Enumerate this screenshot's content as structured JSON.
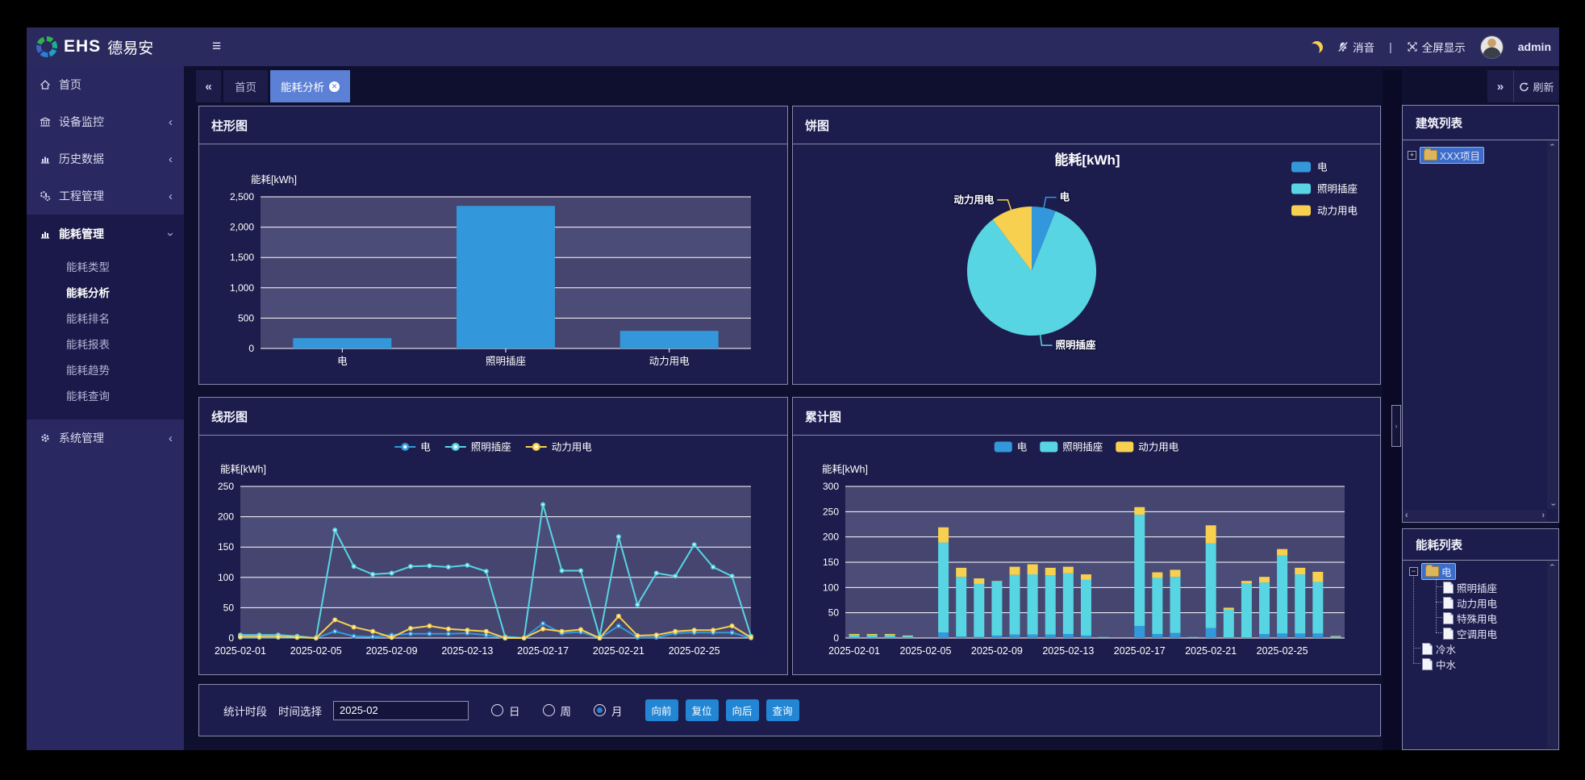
{
  "colors": {
    "accent_blue": "#3398db",
    "cyan": "#58d5e2",
    "yellow": "#f6d04e",
    "tab_active": "#5b80d5",
    "button_blue": "#2286d5",
    "plot_bg_a": "#45456f",
    "plot_bg_b": "#4c4c78"
  },
  "app": {
    "brand": {
      "en": "EHS",
      "cn": "德易安"
    },
    "topbar": {
      "mute": "消音",
      "divider": "|",
      "fullscreen": "全屏显示",
      "user": "admin"
    },
    "sidebar": {
      "items": [
        {
          "label": "首页"
        },
        {
          "label": "设备监控"
        },
        {
          "label": "历史数据"
        },
        {
          "label": "工程管理"
        },
        {
          "label": "能耗管理",
          "children": [
            "能耗类型",
            "能耗分析",
            "能耗排名",
            "能耗报表",
            "能耗趋势",
            "能耗查询"
          ],
          "active_child": "能耗分析"
        },
        {
          "label": "系统管理"
        }
      ]
    },
    "tabs": {
      "home": "首页",
      "active": "能耗分析",
      "refresh": "刷新"
    },
    "panels": {
      "bar": "柱形图",
      "pie": "饼图",
      "line": "线形图",
      "stack": "累计图"
    },
    "controls": {
      "section": "统计时段",
      "picker": "时间选择",
      "value": "2025-02",
      "radio_day": "日",
      "radio_week": "周",
      "radio_month": "月",
      "checked": "月",
      "btn_prev": "向前",
      "btn_reset": "复位",
      "btn_next": "向后",
      "btn_query": "查询"
    },
    "right": {
      "building_title": "建筑列表",
      "building_root": "XXX项目",
      "energy_title": "能耗列表",
      "energy_root": "电",
      "energy_children": [
        "照明插座",
        "动力用电",
        "特殊用电",
        "空调用电"
      ],
      "energy_siblings": [
        "冷水",
        "中水"
      ]
    }
  },
  "chart_data": [
    {
      "id": "bar",
      "type": "bar",
      "ylabel": "能耗[kWh]",
      "categories": [
        "电",
        "照明插座",
        "动力用电"
      ],
      "values": [
        170,
        2350,
        290
      ],
      "ylim": [
        0,
        2500
      ],
      "ytick_step": 500,
      "color": "#3398db",
      "grid": true
    },
    {
      "id": "pie",
      "type": "pie",
      "title": "能耗[kWh]",
      "labels": [
        "电",
        "照明插座",
        "动力用电"
      ],
      "values": [
        170,
        2350,
        290
      ],
      "colors": [
        "#3398db",
        "#58d5e2",
        "#f6d04e"
      ],
      "legend_position": "right"
    },
    {
      "id": "line",
      "type": "line",
      "ylabel": "能耗[kWh]",
      "ylim": [
        0,
        250
      ],
      "ytick_step": 50,
      "xtick_every": 4,
      "grid": true,
      "legend_position": "top",
      "x": [
        "2025-02-01",
        "2025-02-02",
        "2025-02-03",
        "2025-02-04",
        "2025-02-05",
        "2025-02-06",
        "2025-02-07",
        "2025-02-08",
        "2025-02-09",
        "2025-02-10",
        "2025-02-11",
        "2025-02-12",
        "2025-02-13",
        "2025-02-14",
        "2025-02-15",
        "2025-02-16",
        "2025-02-17",
        "2025-02-18",
        "2025-02-19",
        "2025-02-20",
        "2025-02-21",
        "2025-02-22",
        "2025-02-23",
        "2025-02-24",
        "2025-02-25",
        "2025-02-26",
        "2025-02-27",
        "2025-02-28"
      ],
      "series": [
        {
          "name": "电",
          "color": "#3398db",
          "values": [
            1,
            1,
            1,
            1,
            0,
            11,
            3,
            2,
            5,
            7,
            7,
            7,
            8,
            5,
            0,
            0,
            24,
            8,
            10,
            0,
            20,
            1,
            1,
            8,
            9,
            9,
            9,
            0
          ]
        },
        {
          "name": "照明插座",
          "color": "#58d5e2",
          "values": [
            5,
            5,
            5,
            3,
            0,
            178,
            118,
            105,
            107,
            118,
            119,
            117,
            120,
            110,
            2,
            0,
            220,
            111,
            111,
            2,
            167,
            55,
            107,
            102,
            154,
            117,
            102,
            3
          ]
        },
        {
          "name": "动力用电",
          "color": "#f6d04e",
          "values": [
            2,
            2,
            2,
            1,
            0,
            30,
            18,
            11,
            1,
            16,
            20,
            15,
            13,
            11,
            0,
            0,
            15,
            11,
            14,
            0,
            36,
            4,
            5,
            11,
            13,
            13,
            20,
            1
          ]
        }
      ]
    },
    {
      "id": "stack",
      "type": "stacked_bar",
      "ylabel": "能耗[kWh]",
      "ylim": [
        0,
        300
      ],
      "ytick_step": 50,
      "xtick_every": 4,
      "grid": true,
      "legend_position": "top",
      "x": [
        "2025-02-01",
        "2025-02-02",
        "2025-02-03",
        "2025-02-04",
        "2025-02-05",
        "2025-02-06",
        "2025-02-07",
        "2025-02-08",
        "2025-02-09",
        "2025-02-10",
        "2025-02-11",
        "2025-02-12",
        "2025-02-13",
        "2025-02-14",
        "2025-02-15",
        "2025-02-16",
        "2025-02-17",
        "2025-02-18",
        "2025-02-19",
        "2025-02-20",
        "2025-02-21",
        "2025-02-22",
        "2025-02-23",
        "2025-02-24",
        "2025-02-25",
        "2025-02-26",
        "2025-02-27",
        "2025-02-28"
      ],
      "series": [
        {
          "name": "电",
          "color": "#3398db",
          "values": [
            1,
            1,
            1,
            1,
            0,
            11,
            3,
            2,
            5,
            7,
            7,
            7,
            8,
            5,
            0,
            0,
            24,
            8,
            10,
            0,
            20,
            1,
            1,
            8,
            9,
            9,
            9,
            0
          ]
        },
        {
          "name": "照明插座",
          "color": "#58d5e2",
          "values": [
            5,
            5,
            5,
            3,
            0,
            178,
            118,
            105,
            107,
            118,
            119,
            117,
            120,
            110,
            2,
            0,
            220,
            111,
            111,
            2,
            167,
            55,
            107,
            102,
            154,
            117,
            102,
            3
          ]
        },
        {
          "name": "动力用电",
          "color": "#f6d04e",
          "values": [
            2,
            2,
            2,
            1,
            0,
            30,
            18,
            11,
            1,
            16,
            20,
            15,
            13,
            11,
            0,
            0,
            15,
            11,
            14,
            0,
            36,
            4,
            5,
            11,
            13,
            13,
            20,
            1
          ]
        }
      ]
    }
  ]
}
